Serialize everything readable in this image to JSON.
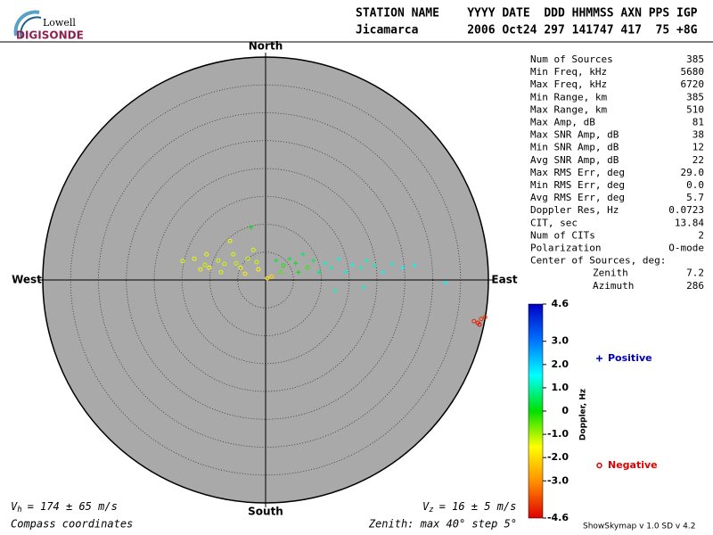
{
  "logo": {
    "top": "Lowell",
    "bottom": "DIGISONDE"
  },
  "header": {
    "line1": "STATION NAME    YYYY DATE  DDD HHMMSS AXN PPS IGP",
    "line2": "Jicamarca       2006 Oct24 297 141747 417  75 +8G"
  },
  "stats": {
    "rows": [
      [
        "Num of Sources",
        "385"
      ],
      [
        "Min Freq, kHz",
        "5680"
      ],
      [
        "Max Freq, kHz",
        "6720"
      ],
      [
        "Min Range, km",
        "385"
      ],
      [
        "Max Range, km",
        "510"
      ],
      [
        "Max Amp, dB",
        "81"
      ],
      [
        "Max SNR Amp, dB",
        "38"
      ],
      [
        "Min SNR Amp, dB",
        "12"
      ],
      [
        "Avg SNR Amp, dB",
        "22"
      ],
      [
        "Max RMS Err, deg",
        "29.0"
      ],
      [
        "Min RMS Err, deg",
        "0.0"
      ],
      [
        "Avg RMS Err, deg",
        "5.7"
      ],
      [
        "Doppler Res, Hz",
        "0.0723"
      ],
      [
        "CIT, sec",
        "13.84"
      ],
      [
        "Num of CITs",
        "2"
      ],
      [
        "Polarization",
        "O-mode"
      ]
    ],
    "center_title": "Center of Sources, deg:",
    "center_rows": [
      [
        "Zenith",
        "7.2"
      ],
      [
        "Azimuth",
        "286"
      ]
    ]
  },
  "chart_data": {
    "type": "scatter",
    "directions": {
      "north": "North",
      "south": "South",
      "west": "West",
      "east": "East"
    },
    "rlim": [
      0,
      40
    ],
    "rticks": [
      5,
      10,
      15,
      20,
      25,
      30,
      35
    ],
    "x": [
      -14.9,
      -12.8,
      -10.9,
      -10.1,
      -8.5,
      -7.4,
      -6.4,
      -5.8,
      -4.5,
      -3.2,
      -2.2,
      -1.3,
      -10.6,
      -5.3,
      -8.0,
      -3.7,
      -11.7,
      -1.6,
      0.3,
      1.1,
      1.9,
      3.2,
      4.3,
      5.4,
      6.7,
      7.5,
      8.6,
      9.6,
      2.7,
      5.9,
      -2.6,
      10.7,
      11.8,
      13.1,
      14.4,
      15.5,
      17.1,
      18.2,
      19.5,
      21.1,
      22.7,
      24.6,
      26.7,
      12.5,
      17.6,
      32.3,
      37.4,
      38.1,
      38.7,
      39.4,
      38.4
    ],
    "y": [
      3.4,
      3.8,
      2.7,
      2.2,
      3.5,
      2.9,
      7.0,
      4.6,
      2.2,
      3.8,
      5.4,
      1.9,
      4.6,
      3.0,
      1.4,
      1.1,
      1.9,
      3.2,
      0.3,
      0.6,
      3.5,
      2.6,
      3.8,
      3.0,
      4.6,
      2.2,
      3.5,
      1.4,
      1.4,
      1.4,
      9.4,
      3.0,
      2.2,
      3.8,
      1.4,
      2.7,
      2.2,
      3.5,
      2.6,
      1.4,
      2.9,
      2.2,
      2.6,
      -1.9,
      -1.3,
      -0.5,
      -7.4,
      -7.7,
      -7.0,
      -6.7,
      -8.0
    ],
    "doppler": [
      -1.3,
      -1.4,
      -1.2,
      -1.5,
      -1.3,
      -1.2,
      -1.4,
      -1.3,
      -1.5,
      -1.2,
      -1.3,
      -1.6,
      -1.4,
      -1.2,
      -1.3,
      -1.7,
      -1.4,
      -1.2,
      -1.9,
      -2.0,
      0.3,
      -0.2,
      0.4,
      0.2,
      0.6,
      -0.3,
      0.5,
      0.7,
      -0.5,
      0.1,
      0.2,
      1.2,
      1.1,
      1.3,
      1.2,
      1.4,
      1.2,
      1.3,
      1.1,
      1.4,
      1.3,
      1.5,
      1.4,
      1.2,
      1.3,
      1.6,
      -4.2,
      -4.3,
      -4.1,
      -4.0,
      -4.4
    ],
    "colorbar": {
      "title": "Doppler, Hz",
      "lim": [
        -4.6,
        4.6
      ],
      "ticks": [
        4.6,
        {
          "value": 3,
          "label": "3.0"
        },
        {
          "value": 2,
          "label": "2.0"
        },
        {
          "value": 1,
          "label": "1.0"
        },
        0,
        {
          "value": -1,
          "label": "-1.0"
        },
        {
          "value": -2,
          "label": "-2.0"
        },
        {
          "value": -3,
          "label": "-3.0"
        },
        -4.6
      ],
      "colors": [
        "#e00000",
        "#ff8c00",
        "#ffff00",
        "#00e000",
        "#00ffff",
        "#0070ff",
        "#0000c0"
      ]
    },
    "legend": {
      "positive": "Positive",
      "negative": "Negative",
      "positive_color": "#0000c0",
      "negative_color": "#e00000"
    },
    "background": "#a9a9a9"
  },
  "footer": {
    "vh_symbol": "V",
    "vh_sub": "h",
    "vh_text": "= 174 ± 65 m/s",
    "vz_symbol": "V",
    "vz_sub": "z",
    "vz_text": "= 16 ± 5 m/s",
    "coords": "Compass coordinates",
    "zenith": "Zenith: max 40°  step 5°",
    "version": "ShowSkymap v 1.0  SD v 4.2"
  }
}
